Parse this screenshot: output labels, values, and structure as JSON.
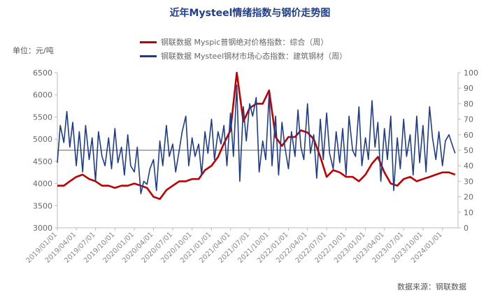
{
  "chart_data": {
    "type": "line",
    "title": "近年Mysteel情绪指数与钢价走势图",
    "unit_label": "单位：元/吨",
    "source": "数据来源：钢联数据",
    "legend_position": "top-center",
    "grid": false,
    "y_left": {
      "min": 3000,
      "max": 6500,
      "ticks": [
        3000,
        3500,
        4000,
        4500,
        5000,
        5500,
        6000,
        6500
      ]
    },
    "y_right": {
      "min": 0,
      "max": 100,
      "ticks": [
        0,
        10,
        20,
        30,
        40,
        50,
        60,
        70,
        80,
        90,
        100
      ]
    },
    "x_tick_labels": [
      "2019/01/01",
      "2019/04/01",
      "2019/07/01",
      "2019/10/01",
      "2020/01/01",
      "2020/04/01",
      "2020/07/01",
      "2020/10/01",
      "2021/01/01",
      "2021/04/01",
      "2021/07/01",
      "2021/10/01",
      "2022/01/01",
      "2022/04/01",
      "2022/07/01",
      "2022/10/01",
      "2023/01/01",
      "2023/04/01",
      "2023/07/01",
      "2023/10/01",
      "2024/01/01"
    ],
    "reference_line": {
      "axis": "right",
      "value": 50,
      "color": "#b0b0b0"
    },
    "series": [
      {
        "name": "钢联数据 Myspic普钢绝对价格指数：综合（周）",
        "axis": "left",
        "color": "#c00000",
        "x": [
          "2019/01/01",
          "2019/02/01",
          "2019/03/01",
          "2019/04/01",
          "2019/05/01",
          "2019/06/01",
          "2019/07/01",
          "2019/08/01",
          "2019/09/01",
          "2019/10/01",
          "2019/11/01",
          "2019/12/01",
          "2020/01/01",
          "2020/02/01",
          "2020/03/01",
          "2020/04/01",
          "2020/05/01",
          "2020/06/01",
          "2020/07/01",
          "2020/08/01",
          "2020/09/01",
          "2020/10/01",
          "2020/11/01",
          "2020/12/01",
          "2021/01/01",
          "2021/02/01",
          "2021/03/01",
          "2021/04/01",
          "2021/05/01",
          "2021/06/01",
          "2021/07/01",
          "2021/08/01",
          "2021/09/01",
          "2021/10/01",
          "2021/11/01",
          "2021/12/01",
          "2022/01/01",
          "2022/02/01",
          "2022/03/01",
          "2022/04/01",
          "2022/05/01",
          "2022/06/01",
          "2022/07/01",
          "2022/08/01",
          "2022/09/01",
          "2022/10/01",
          "2022/11/01",
          "2022/12/01",
          "2023/01/01",
          "2023/02/01",
          "2023/03/01",
          "2023/04/01",
          "2023/05/01",
          "2023/06/01",
          "2023/07/01",
          "2023/08/01",
          "2023/09/01",
          "2023/10/01",
          "2023/11/01",
          "2023/12/01",
          "2024/01/01",
          "2024/02/01",
          "2024/03/01"
        ],
        "values": [
          3950,
          3950,
          4050,
          4150,
          4200,
          4100,
          4050,
          3950,
          3950,
          3900,
          3950,
          3950,
          4000,
          3950,
          3900,
          3700,
          3650,
          3850,
          3950,
          4050,
          4050,
          4100,
          4100,
          4300,
          4400,
          4600,
          4900,
          5200,
          6500,
          5400,
          5700,
          5800,
          5800,
          6100,
          5050,
          4850,
          5050,
          5050,
          5200,
          5150,
          5000,
          4600,
          4150,
          4300,
          4250,
          4150,
          4150,
          4050,
          4200,
          4450,
          4600,
          4250,
          4000,
          3950,
          4100,
          4150,
          4050,
          4100,
          4150,
          4200,
          4250,
          4250,
          4200
        ]
      },
      {
        "name": "钢联数据 Mysteel钢材市场心态指数：建筑钢材（周）",
        "axis": "right",
        "color": "#1f3c88",
        "x": [
          "2019/01/01",
          "2019/01/15",
          "2019/02/01",
          "2019/02/15",
          "2019/03/01",
          "2019/03/15",
          "2019/04/01",
          "2019/04/15",
          "2019/05/01",
          "2019/05/15",
          "2019/06/01",
          "2019/06/15",
          "2019/07/01",
          "2019/07/15",
          "2019/08/01",
          "2019/08/15",
          "2019/09/01",
          "2019/09/15",
          "2019/10/01",
          "2019/10/15",
          "2019/11/01",
          "2019/11/15",
          "2019/12/01",
          "2019/12/15",
          "2020/01/01",
          "2020/01/15",
          "2020/02/01",
          "2020/02/15",
          "2020/03/01",
          "2020/03/15",
          "2020/04/01",
          "2020/04/15",
          "2020/05/01",
          "2020/05/15",
          "2020/06/01",
          "2020/06/15",
          "2020/07/01",
          "2020/07/15",
          "2020/08/01",
          "2020/08/15",
          "2020/09/01",
          "2020/09/15",
          "2020/10/01",
          "2020/10/15",
          "2020/11/01",
          "2020/11/15",
          "2020/12/01",
          "2020/12/15",
          "2021/01/01",
          "2021/01/15",
          "2021/02/01",
          "2021/02/15",
          "2021/03/01",
          "2021/03/15",
          "2021/04/01",
          "2021/04/15",
          "2021/05/01",
          "2021/05/15",
          "2021/06/01",
          "2021/06/15",
          "2021/07/01",
          "2021/07/15",
          "2021/08/01",
          "2021/08/15",
          "2021/09/01",
          "2021/09/15",
          "2021/10/01",
          "2021/10/15",
          "2021/11/01",
          "2021/11/15",
          "2021/12/01",
          "2021/12/15",
          "2022/01/01",
          "2022/01/15",
          "2022/02/01",
          "2022/02/15",
          "2022/03/01",
          "2022/03/15",
          "2022/04/01",
          "2022/04/15",
          "2022/05/01",
          "2022/05/15",
          "2022/06/01",
          "2022/06/15",
          "2022/07/01",
          "2022/07/15",
          "2022/08/01",
          "2022/08/15",
          "2022/09/01",
          "2022/09/15",
          "2022/10/01",
          "2022/10/15",
          "2022/11/01",
          "2022/11/15",
          "2022/12/01",
          "2022/12/15",
          "2023/01/01",
          "2023/01/15",
          "2023/02/01",
          "2023/02/15",
          "2023/03/01",
          "2023/03/15",
          "2023/04/01",
          "2023/04/15",
          "2023/05/01",
          "2023/05/15",
          "2023/06/01",
          "2023/06/15",
          "2023/07/01",
          "2023/07/15",
          "2023/08/01",
          "2023/08/15",
          "2023/09/01",
          "2023/09/15",
          "2023/10/01",
          "2023/10/15",
          "2023/11/01",
          "2023/11/15",
          "2023/12/01",
          "2023/12/15",
          "2024/01/01",
          "2024/01/15",
          "2024/02/01",
          "2024/02/15",
          "2024/03/01"
        ],
        "values": [
          42,
          66,
          55,
          75,
          52,
          68,
          40,
          62,
          36,
          66,
          44,
          58,
          30,
          62,
          46,
          40,
          58,
          38,
          64,
          42,
          52,
          34,
          60,
          40,
          36,
          52,
          22,
          30,
          28,
          38,
          44,
          24,
          56,
          40,
          66,
          46,
          54,
          36,
          50,
          62,
          72,
          40,
          58,
          46,
          54,
          34,
          62,
          48,
          70,
          44,
          62,
          54,
          66,
          40,
          74,
          46,
          92,
          30,
          78,
          56,
          80,
          72,
          84,
          36,
          56,
          44,
          86,
          40,
          72,
          34,
          68,
          52,
          38,
          62,
          46,
          76,
          52,
          44,
          80,
          48,
          60,
          32,
          70,
          44,
          74,
          48,
          38,
          62,
          42,
          64,
          34,
          72,
          50,
          46,
          78,
          40,
          58,
          44,
          82,
          52,
          68,
          30,
          64,
          44,
          72,
          24,
          58,
          38,
          70,
          46,
          60,
          34,
          72,
          42,
          66,
          36,
          78,
          58,
          44,
          62,
          40,
          56,
          60,
          54,
          48
        ]
      }
    ]
  }
}
